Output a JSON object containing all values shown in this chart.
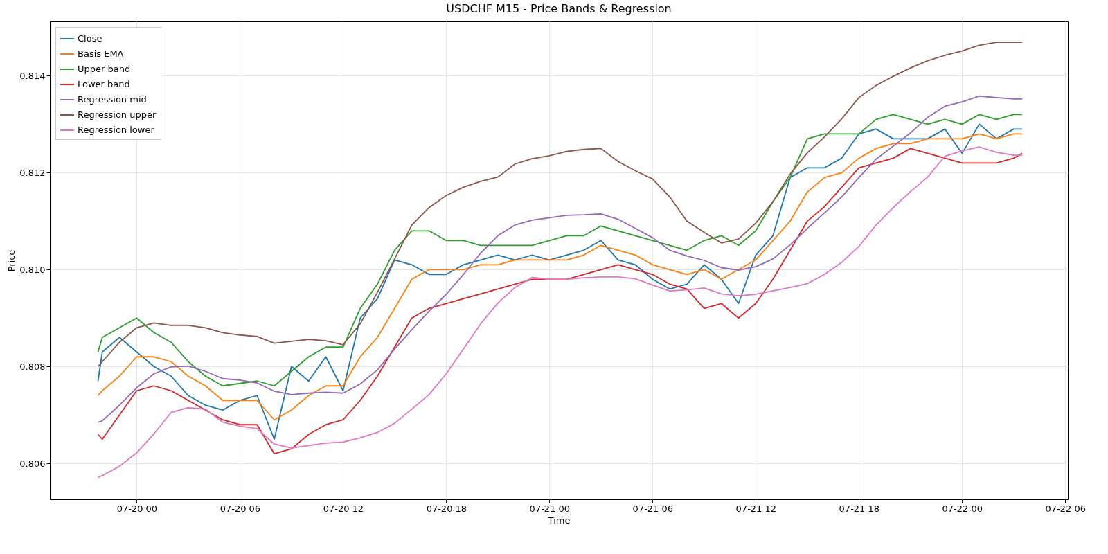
{
  "chart_data": {
    "type": "line",
    "title": "USDCHF M15 - Price Bands & Regression",
    "xlabel": "Time",
    "ylabel": "Price",
    "x": [
      "--07-19T21:45",
      "--07-19T22:00",
      "--07-19T23:00",
      "--07-20T00:00",
      "--07-20T01:00",
      "--07-20T02:00",
      "--07-20T03:00",
      "--07-20T04:00",
      "--07-20T05:00",
      "--07-20T06:00",
      "--07-20T07:00",
      "--07-20T08:00",
      "--07-20T09:00",
      "--07-20T10:00",
      "--07-20T11:00",
      "--07-20T12:00",
      "--07-20T13:00",
      "--07-20T14:00",
      "--07-20T15:00",
      "--07-20T16:00",
      "--07-20T17:00",
      "--07-20T18:00",
      "--07-20T19:00",
      "--07-20T20:00",
      "--07-20T21:00",
      "--07-20T22:00",
      "--07-20T23:00",
      "--07-21T00:00",
      "--07-21T01:00",
      "--07-21T02:00",
      "--07-21T03:00",
      "--07-21T04:00",
      "--07-21T05:00",
      "--07-21T06:00",
      "--07-21T07:00",
      "--07-21T08:00",
      "--07-21T09:00",
      "--07-21T10:00",
      "--07-21T11:00",
      "--07-21T12:00",
      "--07-21T13:00",
      "--07-21T14:00",
      "--07-21T15:00",
      "--07-21T16:00",
      "--07-21T17:00",
      "--07-21T18:00",
      "--07-21T19:00",
      "--07-21T20:00",
      "--07-21T21:00",
      "--07-21T22:00",
      "--07-21T23:00",
      "--07-22T00:00",
      "--07-22T01:00",
      "--07-22T02:00",
      "--07-22T03:00",
      "--07-22T03:30"
    ],
    "xlim": [
      "--07-19T18:57",
      "--07-22T06:09"
    ],
    "xticks": [
      {
        "value": "--07-20T00:00",
        "label": "07-20 00"
      },
      {
        "value": "--07-20T06:00",
        "label": "07-20 06"
      },
      {
        "value": "--07-20T12:00",
        "label": "07-20 12"
      },
      {
        "value": "--07-20T18:00",
        "label": "07-20 18"
      },
      {
        "value": "--07-21T00:00",
        "label": "07-21 00"
      },
      {
        "value": "--07-21T06:00",
        "label": "07-21 06"
      },
      {
        "value": "--07-21T12:00",
        "label": "07-21 12"
      },
      {
        "value": "--07-21T18:00",
        "label": "07-21 18"
      },
      {
        "value": "--07-22T00:00",
        "label": "07-22 00"
      },
      {
        "value": "--07-22T06:00",
        "label": "07-22 06"
      }
    ],
    "ylim": [
      0.80526,
      0.81512
    ],
    "yticks": [
      {
        "value": 0.806,
        "label": "0.806"
      },
      {
        "value": 0.808,
        "label": "0.808"
      },
      {
        "value": 0.81,
        "label": "0.810"
      },
      {
        "value": 0.812,
        "label": "0.812"
      },
      {
        "value": 0.814,
        "label": "0.814"
      }
    ],
    "grid": true,
    "legend": "top left",
    "series": [
      {
        "name": "Close",
        "color": "#1f77b4",
        "values": [
          0.8077,
          0.8083,
          0.8086,
          0.8083,
          0.808,
          0.8078,
          0.8074,
          0.8072,
          0.8071,
          0.8073,
          0.8074,
          0.8065,
          0.808,
          0.8077,
          0.8082,
          0.8075,
          0.809,
          0.8094,
          0.8102,
          0.8101,
          0.8099,
          0.8099,
          0.8101,
          0.8102,
          0.8103,
          0.8102,
          0.8103,
          0.8102,
          0.8103,
          0.8104,
          0.8106,
          0.8102,
          0.8101,
          0.8098,
          0.8096,
          0.8097,
          0.8101,
          0.8098,
          0.8093,
          0.8103,
          0.8107,
          0.8119,
          0.8121,
          0.8121,
          0.8123,
          0.8128,
          0.8129,
          0.8127,
          0.8127,
          0.8127,
          0.8129,
          0.8124,
          0.813,
          0.8127,
          0.8129,
          0.8129
        ]
      },
      {
        "name": "Basis EMA",
        "color": "#ff7f0e",
        "values": [
          0.8074,
          0.8075,
          0.8078,
          0.8082,
          0.8082,
          0.8081,
          0.8078,
          0.8076,
          0.8073,
          0.8073,
          0.8073,
          0.8069,
          0.8071,
          0.8074,
          0.8076,
          0.8076,
          0.8082,
          0.8086,
          0.8092,
          0.8098,
          0.81,
          0.81,
          0.81,
          0.8101,
          0.8101,
          0.8102,
          0.8102,
          0.8102,
          0.8102,
          0.8103,
          0.8105,
          0.8104,
          0.8103,
          0.8101,
          0.81,
          0.8099,
          0.81,
          0.8098,
          0.81,
          0.8102,
          0.8106,
          0.811,
          0.8116,
          0.8119,
          0.812,
          0.8123,
          0.8125,
          0.8126,
          0.8126,
          0.8127,
          0.8127,
          0.8127,
          0.8128,
          0.8127,
          0.8128,
          0.8128
        ]
      },
      {
        "name": "Upper band",
        "color": "#2ca02c",
        "values": [
          0.8083,
          0.8086,
          0.8088,
          0.809,
          0.8087,
          0.8085,
          0.8081,
          0.8078,
          0.8076,
          0.80765,
          0.8077,
          0.8076,
          0.8079,
          0.8082,
          0.8084,
          0.8084,
          0.8092,
          0.8097,
          0.8104,
          0.8108,
          0.8108,
          0.8106,
          0.8106,
          0.8105,
          0.8105,
          0.8105,
          0.8105,
          0.8106,
          0.8107,
          0.8107,
          0.8109,
          0.8108,
          0.8107,
          0.8106,
          0.8105,
          0.8104,
          0.8106,
          0.8107,
          0.8105,
          0.8108,
          0.8114,
          0.8119,
          0.8127,
          0.8128,
          0.8128,
          0.8128,
          0.8131,
          0.8132,
          0.8131,
          0.813,
          0.8131,
          0.813,
          0.8132,
          0.8131,
          0.8132,
          0.8132
        ]
      },
      {
        "name": "Lower band",
        "color": "#d62728",
        "values": [
          0.8066,
          0.8065,
          0.807,
          0.8075,
          0.8076,
          0.8075,
          0.8073,
          0.8071,
          0.8069,
          0.8068,
          0.8068,
          0.8062,
          0.8063,
          0.8066,
          0.8068,
          0.8069,
          0.8073,
          0.8078,
          0.8084,
          0.809,
          0.8092,
          0.8093,
          0.8094,
          0.8095,
          0.8096,
          0.8097,
          0.8098,
          0.8098,
          0.8098,
          0.8099,
          0.81,
          0.8101,
          0.81,
          0.8099,
          0.8097,
          0.8096,
          0.8092,
          0.8093,
          0.809,
          0.8093,
          0.8098,
          0.8104,
          0.811,
          0.8113,
          0.8117,
          0.8121,
          0.8122,
          0.8123,
          0.8125,
          0.8124,
          0.8123,
          0.8122,
          0.8122,
          0.8122,
          0.8123,
          0.8124
        ]
      },
      {
        "name": "Regression mid",
        "color": "#9467bd",
        "values": [
          0.80685,
          0.80688,
          0.8072,
          0.80756,
          0.80785,
          0.80799,
          0.80801,
          0.8079,
          0.80775,
          0.80772,
          0.80766,
          0.80749,
          0.80742,
          0.80745,
          0.80747,
          0.80745,
          0.80764,
          0.80793,
          0.80836,
          0.80876,
          0.80914,
          0.80949,
          0.8099,
          0.81034,
          0.8107,
          0.81092,
          0.81102,
          0.81107,
          0.81112,
          0.81113,
          0.81115,
          0.81104,
          0.81085,
          0.81066,
          0.8104,
          0.81028,
          0.81019,
          0.81004,
          0.80999,
          0.81006,
          0.81022,
          0.81051,
          0.81085,
          0.81117,
          0.8115,
          0.8119,
          0.81228,
          0.81255,
          0.81282,
          0.81314,
          0.81337,
          0.81346,
          0.81358,
          0.81355,
          0.81352,
          0.81352
        ]
      },
      {
        "name": "Regression upper",
        "color": "#8c564b",
        "values": [
          0.808,
          0.8081,
          0.8085,
          0.8088,
          0.8089,
          0.80885,
          0.80885,
          0.8088,
          0.8087,
          0.80865,
          0.80862,
          0.80848,
          0.80852,
          0.80856,
          0.80853,
          0.80845,
          0.80888,
          0.80953,
          0.81022,
          0.81092,
          0.81128,
          0.81153,
          0.8117,
          0.81182,
          0.81191,
          0.81218,
          0.81229,
          0.81235,
          0.81244,
          0.81248,
          0.8125,
          0.81223,
          0.81204,
          0.81187,
          0.8115,
          0.811,
          0.81077,
          0.81055,
          0.81063,
          0.81096,
          0.8114,
          0.81197,
          0.81241,
          0.81274,
          0.81311,
          0.81355,
          0.8138,
          0.81399,
          0.81416,
          0.81431,
          0.81442,
          0.81451,
          0.81463,
          0.81469,
          0.81469,
          0.81469
        ]
      },
      {
        "name": "Regression lower",
        "color": "#e377c2",
        "values": [
          0.80571,
          0.80575,
          0.80594,
          0.80622,
          0.80661,
          0.80705,
          0.80715,
          0.80712,
          0.80685,
          0.80677,
          0.80672,
          0.8064,
          0.80632,
          0.80637,
          0.80642,
          0.80644,
          0.80653,
          0.80664,
          0.80683,
          0.80712,
          0.80742,
          0.80785,
          0.80836,
          0.80888,
          0.80931,
          0.80963,
          0.80984,
          0.8098,
          0.8098,
          0.80983,
          0.80985,
          0.80985,
          0.80981,
          0.80968,
          0.80956,
          0.80958,
          0.80962,
          0.8095,
          0.80946,
          0.80949,
          0.80956,
          0.80963,
          0.80971,
          0.8099,
          0.81015,
          0.81048,
          0.81092,
          0.81128,
          0.81161,
          0.81191,
          0.81234,
          0.81245,
          0.81253,
          0.81242,
          0.81236,
          0.81236
        ]
      }
    ]
  }
}
